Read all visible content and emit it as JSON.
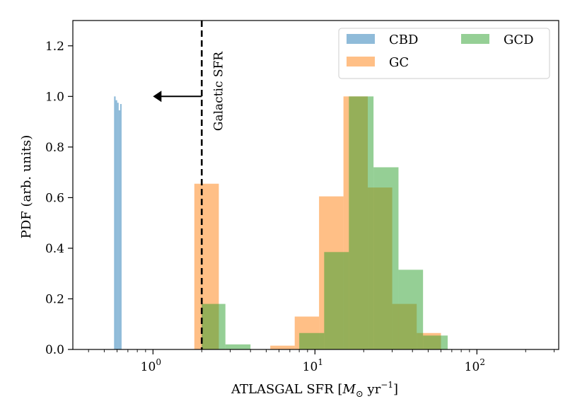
{
  "chart_data": {
    "type": "histogram",
    "xscale": "log",
    "xlim": [
      0.32,
      320
    ],
    "ylim": [
      0,
      1.3
    ],
    "xlabel_text": "ATLASGAL SFR [",
    "xlabel_math": "M",
    "xlabel_sub": "⊙",
    "xlabel_unit": " yr",
    "xlabel_exp": "−1",
    "xlabel_close": "]",
    "ylabel": "PDF (arb. units)",
    "xticks": [
      {
        "value": 1,
        "base": "10",
        "exp": "0"
      },
      {
        "value": 10,
        "base": "10",
        "exp": "1"
      },
      {
        "value": 100,
        "base": "10",
        "exp": "2"
      }
    ],
    "yticks": [
      {
        "value": 0.0,
        "label": "0.0"
      },
      {
        "value": 0.2,
        "label": "0.2"
      },
      {
        "value": 0.4,
        "label": "0.4"
      },
      {
        "value": 0.6,
        "label": "0.6"
      },
      {
        "value": 0.8,
        "label": "0.8"
      },
      {
        "value": 1.0,
        "label": "1.0"
      },
      {
        "value": 1.2,
        "label": "1.2"
      }
    ],
    "galactic_sfr": {
      "x": 2.0,
      "label": "Galactic SFR",
      "arrow_to_x": 1.0,
      "arrow_y": 1.0
    },
    "series": [
      {
        "name": "CBD",
        "color": "#1f77b4",
        "opacity": 0.5,
        "bins": [
          {
            "x0": 0.575,
            "x1": 0.588,
            "y": 1.0
          },
          {
            "x0": 0.588,
            "x1": 0.601,
            "y": 0.985
          },
          {
            "x0": 0.601,
            "x1": 0.614,
            "y": 0.975
          },
          {
            "x0": 0.614,
            "x1": 0.627,
            "y": 0.945
          },
          {
            "x0": 0.627,
            "x1": 0.64,
            "y": 0.97
          }
        ]
      },
      {
        "name": "GC",
        "color": "#ff7f0e",
        "opacity": 0.5,
        "bins": [
          {
            "x0": 1.8,
            "x1": 2.55,
            "y": 0.655
          },
          {
            "x0": 5.3,
            "x1": 7.5,
            "y": 0.015
          },
          {
            "x0": 7.5,
            "x1": 10.6,
            "y": 0.13
          },
          {
            "x0": 10.6,
            "x1": 15.0,
            "y": 0.605
          },
          {
            "x0": 15.0,
            "x1": 21.2,
            "y": 1.0
          },
          {
            "x0": 21.2,
            "x1": 30.0,
            "y": 0.64
          },
          {
            "x0": 30.0,
            "x1": 42.5,
            "y": 0.18
          },
          {
            "x0": 42.5,
            "x1": 60.0,
            "y": 0.065
          }
        ]
      },
      {
        "name": "GCD",
        "color": "#2ca02c",
        "opacity": 0.5,
        "bins": [
          {
            "x0": 2.0,
            "x1": 2.8,
            "y": 0.18
          },
          {
            "x0": 2.8,
            "x1": 4.0,
            "y": 0.02
          },
          {
            "x0": 8.0,
            "x1": 11.4,
            "y": 0.065
          },
          {
            "x0": 11.4,
            "x1": 16.2,
            "y": 0.385
          },
          {
            "x0": 16.2,
            "x1": 23.0,
            "y": 1.0
          },
          {
            "x0": 23.0,
            "x1": 32.8,
            "y": 0.72
          },
          {
            "x0": 32.8,
            "x1": 46.5,
            "y": 0.315
          },
          {
            "x0": 46.5,
            "x1": 66.0,
            "y": 0.055
          }
        ]
      }
    ],
    "legend_placement": "top-right",
    "grid": false
  }
}
